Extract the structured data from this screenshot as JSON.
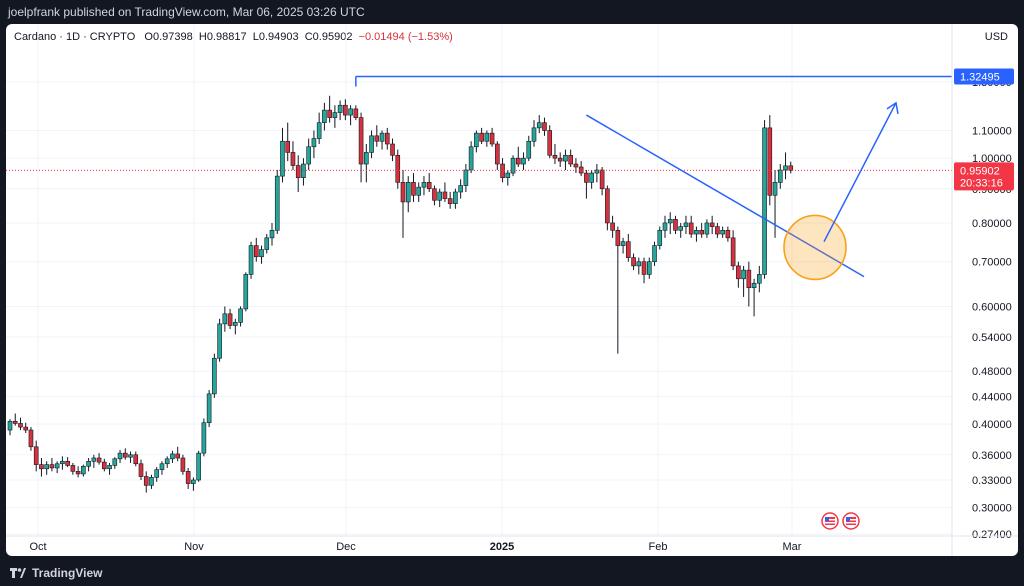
{
  "publish_line": "joelpfrank published on TradingView.com, Mar 06, 2025 03:26 UTC",
  "legend": {
    "symbol": "Cardano · 1D · CRYPTO",
    "open": "O0.97398",
    "high": "H0.98817",
    "low": "L0.94903",
    "close": "C0.95902",
    "change": "−0.01494 (−1.53%)"
  },
  "currency": "USD",
  "footer_brand": "TradingView",
  "colors": {
    "up": "#26a69a",
    "down": "#d6323d",
    "drawing": "#2962ff",
    "circle": "#f7a21b",
    "last_price": "#f23645",
    "target": "#2962ff"
  },
  "chart_data": {
    "type": "candlestick",
    "y_scale": "log",
    "y_ticks": [
      "1.30000",
      "1.10000",
      "1.00000",
      "0.90000",
      "0.80000",
      "0.70000",
      "0.60000",
      "0.54000",
      "0.48000",
      "0.44000",
      "0.40000",
      "0.36000",
      "0.33000",
      "0.30000",
      "0.27400"
    ],
    "x_labels": [
      "Oct",
      "Nov",
      "Dec",
      "2025",
      "Feb",
      "Mar"
    ],
    "target_price": "1.32495",
    "last_price": "0.95902",
    "countdown": "20:33:16",
    "candles": [
      [
        0.392,
        0.407,
        0.385,
        0.404
      ],
      [
        0.404,
        0.415,
        0.398,
        0.401
      ],
      [
        0.401,
        0.409,
        0.392,
        0.396
      ],
      [
        0.396,
        0.402,
        0.388,
        0.392
      ],
      [
        0.392,
        0.396,
        0.365,
        0.37
      ],
      [
        0.37,
        0.378,
        0.34,
        0.348
      ],
      [
        0.348,
        0.356,
        0.334,
        0.343
      ],
      [
        0.343,
        0.352,
        0.336,
        0.348
      ],
      [
        0.348,
        0.356,
        0.34,
        0.344
      ],
      [
        0.344,
        0.352,
        0.338,
        0.349
      ],
      [
        0.349,
        0.358,
        0.342,
        0.352
      ],
      [
        0.352,
        0.357,
        0.345,
        0.347
      ],
      [
        0.347,
        0.35,
        0.336,
        0.34
      ],
      [
        0.34,
        0.346,
        0.333,
        0.337
      ],
      [
        0.337,
        0.348,
        0.334,
        0.346
      ],
      [
        0.346,
        0.356,
        0.34,
        0.352
      ],
      [
        0.352,
        0.36,
        0.344,
        0.356
      ],
      [
        0.356,
        0.362,
        0.348,
        0.351
      ],
      [
        0.351,
        0.355,
        0.34,
        0.343
      ],
      [
        0.343,
        0.35,
        0.336,
        0.347
      ],
      [
        0.347,
        0.357,
        0.343,
        0.355
      ],
      [
        0.355,
        0.366,
        0.35,
        0.362
      ],
      [
        0.362,
        0.368,
        0.354,
        0.357
      ],
      [
        0.357,
        0.364,
        0.35,
        0.36
      ],
      [
        0.36,
        0.364,
        0.346,
        0.349
      ],
      [
        0.349,
        0.354,
        0.33,
        0.334
      ],
      [
        0.334,
        0.34,
        0.316,
        0.324
      ],
      [
        0.324,
        0.336,
        0.32,
        0.333
      ],
      [
        0.333,
        0.345,
        0.328,
        0.342
      ],
      [
        0.342,
        0.352,
        0.336,
        0.349
      ],
      [
        0.349,
        0.358,
        0.344,
        0.355
      ],
      [
        0.355,
        0.365,
        0.35,
        0.361
      ],
      [
        0.361,
        0.37,
        0.352,
        0.356
      ],
      [
        0.356,
        0.36,
        0.336,
        0.34
      ],
      [
        0.34,
        0.344,
        0.32,
        0.326
      ],
      [
        0.326,
        0.333,
        0.318,
        0.33
      ],
      [
        0.33,
        0.365,
        0.328,
        0.362
      ],
      [
        0.362,
        0.408,
        0.358,
        0.402
      ],
      [
        0.402,
        0.45,
        0.396,
        0.444
      ],
      [
        0.444,
        0.51,
        0.438,
        0.502
      ],
      [
        0.502,
        0.575,
        0.496,
        0.565
      ],
      [
        0.565,
        0.6,
        0.55,
        0.585
      ],
      [
        0.585,
        0.595,
        0.555,
        0.562
      ],
      [
        0.562,
        0.575,
        0.545,
        0.568
      ],
      [
        0.568,
        0.6,
        0.56,
        0.595
      ],
      [
        0.595,
        0.675,
        0.59,
        0.67
      ],
      [
        0.67,
        0.75,
        0.66,
        0.74
      ],
      [
        0.74,
        0.76,
        0.7,
        0.712
      ],
      [
        0.712,
        0.74,
        0.695,
        0.73
      ],
      [
        0.73,
        0.77,
        0.72,
        0.76
      ],
      [
        0.76,
        0.8,
        0.74,
        0.78
      ],
      [
        0.78,
        0.96,
        0.77,
        0.94
      ],
      [
        0.94,
        1.11,
        0.92,
        1.06
      ],
      [
        1.06,
        1.13,
        0.99,
        1.02
      ],
      [
        1.02,
        1.06,
        0.96,
        0.975
      ],
      [
        0.975,
        1.01,
        0.89,
        0.935
      ],
      [
        0.935,
        1.0,
        0.91,
        0.98
      ],
      [
        0.98,
        1.07,
        0.96,
        1.04
      ],
      [
        1.04,
        1.1,
        1.0,
        1.07
      ],
      [
        1.07,
        1.17,
        1.05,
        1.13
      ],
      [
        1.13,
        1.21,
        1.1,
        1.18
      ],
      [
        1.18,
        1.24,
        1.13,
        1.15
      ],
      [
        1.15,
        1.2,
        1.11,
        1.17
      ],
      [
        1.17,
        1.22,
        1.14,
        1.2
      ],
      [
        1.2,
        1.225,
        1.14,
        1.16
      ],
      [
        1.16,
        1.2,
        1.12,
        1.185
      ],
      [
        1.185,
        1.2,
        1.14,
        1.15
      ],
      [
        1.15,
        1.17,
        0.92,
        0.98
      ],
      [
        0.98,
        1.05,
        0.92,
        1.02
      ],
      [
        1.02,
        1.1,
        1.0,
        1.08
      ],
      [
        1.08,
        1.12,
        1.04,
        1.06
      ],
      [
        1.06,
        1.1,
        1.03,
        1.09
      ],
      [
        1.09,
        1.11,
        1.03,
        1.05
      ],
      [
        1.05,
        1.07,
        0.99,
        1.01
      ],
      [
        1.01,
        1.03,
        0.9,
        0.92
      ],
      [
        0.92,
        0.96,
        0.76,
        0.86
      ],
      [
        0.86,
        0.94,
        0.83,
        0.92
      ],
      [
        0.92,
        0.95,
        0.86,
        0.88
      ],
      [
        0.88,
        0.92,
        0.86,
        0.905
      ],
      [
        0.905,
        0.94,
        0.88,
        0.92
      ],
      [
        0.92,
        0.95,
        0.89,
        0.9
      ],
      [
        0.9,
        0.91,
        0.85,
        0.865
      ],
      [
        0.865,
        0.9,
        0.845,
        0.89
      ],
      [
        0.89,
        0.92,
        0.86,
        0.87
      ],
      [
        0.87,
        0.89,
        0.84,
        0.855
      ],
      [
        0.855,
        0.9,
        0.84,
        0.89
      ],
      [
        0.89,
        0.93,
        0.87,
        0.91
      ],
      [
        0.91,
        0.98,
        0.89,
        0.96
      ],
      [
        0.96,
        1.06,
        0.95,
        1.04
      ],
      [
        1.04,
        1.1,
        1.02,
        1.09
      ],
      [
        1.09,
        1.11,
        1.05,
        1.06
      ],
      [
        1.06,
        1.1,
        1.04,
        1.09
      ],
      [
        1.09,
        1.11,
        1.04,
        1.05
      ],
      [
        1.05,
        1.06,
        0.96,
        0.98
      ],
      [
        0.98,
        1.0,
        0.92,
        0.935
      ],
      [
        0.935,
        0.96,
        0.91,
        0.95
      ],
      [
        0.95,
        1.01,
        0.94,
        1.0
      ],
      [
        1.0,
        1.04,
        0.97,
        0.98
      ],
      [
        0.98,
        1.02,
        0.96,
        1.0
      ],
      [
        1.0,
        1.08,
        0.99,
        1.06
      ],
      [
        1.06,
        1.14,
        1.04,
        1.11
      ],
      [
        1.11,
        1.16,
        1.09,
        1.13
      ],
      [
        1.13,
        1.15,
        1.08,
        1.1
      ],
      [
        1.1,
        1.12,
        1.0,
        1.01
      ],
      [
        1.01,
        1.05,
        0.98,
        1.0
      ],
      [
        1.0,
        1.02,
        0.97,
        0.99
      ],
      [
        0.99,
        1.03,
        0.96,
        1.01
      ],
      [
        1.01,
        1.03,
        0.97,
        0.98
      ],
      [
        0.98,
        1.0,
        0.95,
        0.97
      ],
      [
        0.97,
        0.99,
        0.94,
        0.95
      ],
      [
        0.95,
        0.96,
        0.87,
        0.92
      ],
      [
        0.92,
        0.96,
        0.9,
        0.95
      ],
      [
        0.95,
        0.98,
        0.92,
        0.96
      ],
      [
        0.96,
        0.97,
        0.88,
        0.9
      ],
      [
        0.9,
        0.91,
        0.78,
        0.8
      ],
      [
        0.8,
        0.82,
        0.76,
        0.78
      ],
      [
        0.78,
        0.79,
        0.51,
        0.74
      ],
      [
        0.74,
        0.76,
        0.72,
        0.75
      ],
      [
        0.75,
        0.77,
        0.7,
        0.71
      ],
      [
        0.71,
        0.72,
        0.68,
        0.69
      ],
      [
        0.69,
        0.71,
        0.67,
        0.7
      ],
      [
        0.7,
        0.71,
        0.65,
        0.67
      ],
      [
        0.67,
        0.71,
        0.66,
        0.7
      ],
      [
        0.7,
        0.75,
        0.69,
        0.74
      ],
      [
        0.74,
        0.79,
        0.73,
        0.78
      ],
      [
        0.78,
        0.82,
        0.76,
        0.8
      ],
      [
        0.8,
        0.83,
        0.77,
        0.81
      ],
      [
        0.81,
        0.82,
        0.77,
        0.78
      ],
      [
        0.78,
        0.8,
        0.76,
        0.79
      ],
      [
        0.79,
        0.82,
        0.77,
        0.8
      ],
      [
        0.8,
        0.82,
        0.76,
        0.77
      ],
      [
        0.77,
        0.79,
        0.75,
        0.78
      ],
      [
        0.78,
        0.8,
        0.76,
        0.77
      ],
      [
        0.77,
        0.81,
        0.76,
        0.8
      ],
      [
        0.8,
        0.82,
        0.77,
        0.79
      ],
      [
        0.79,
        0.8,
        0.76,
        0.77
      ],
      [
        0.77,
        0.79,
        0.76,
        0.78
      ],
      [
        0.78,
        0.79,
        0.75,
        0.76
      ],
      [
        0.76,
        0.78,
        0.68,
        0.69
      ],
      [
        0.69,
        0.7,
        0.64,
        0.66
      ],
      [
        0.66,
        0.69,
        0.62,
        0.68
      ],
      [
        0.68,
        0.7,
        0.6,
        0.64
      ],
      [
        0.64,
        0.66,
        0.58,
        0.65
      ],
      [
        0.65,
        0.69,
        0.63,
        0.67
      ],
      [
        0.67,
        1.14,
        0.66,
        1.11
      ],
      [
        1.11,
        1.16,
        0.85,
        0.88
      ],
      [
        0.88,
        0.96,
        0.76,
        0.92
      ],
      [
        0.92,
        0.98,
        0.9,
        0.96
      ],
      [
        0.96,
        1.02,
        0.93,
        0.974
      ],
      [
        0.974,
        0.988,
        0.949,
        0.959
      ]
    ]
  }
}
